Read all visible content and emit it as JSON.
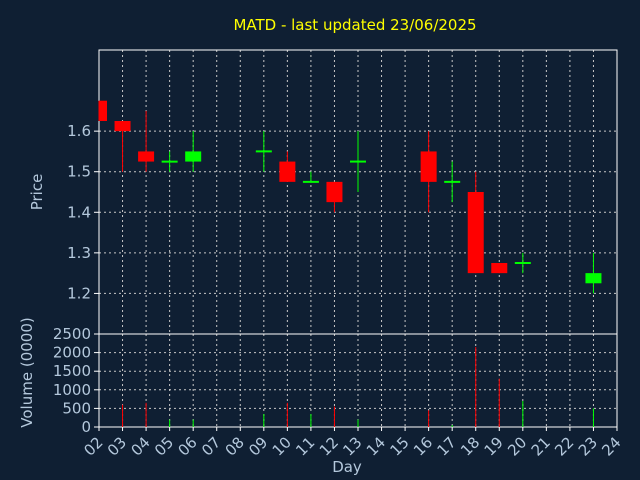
{
  "chart_data": {
    "type": "candlestick",
    "title": "MATD - last updated 23/06/2025",
    "xlabel": "Day",
    "colors": {
      "background": "#0f1f33",
      "title": "#ffff00",
      "axis_text": "#b4c8dc",
      "frame": "#ffffff",
      "grid": "#c8c8c8",
      "up": "#00ff00",
      "down": "#ff0000"
    },
    "x_ticks": [
      "02",
      "03",
      "04",
      "05",
      "06",
      "07",
      "08",
      "09",
      "10",
      "11",
      "12",
      "13",
      "14",
      "15",
      "16",
      "17",
      "18",
      "19",
      "20",
      "21",
      "22",
      "23",
      "24"
    ],
    "price_panel": {
      "ylabel": "Price",
      "ylim": [
        1.1,
        1.8
      ],
      "y_ticks": [
        {
          "value": 1.2,
          "label": "1.2"
        },
        {
          "value": 1.3,
          "label": "1.3"
        },
        {
          "value": 1.4,
          "label": "1.4"
        },
        {
          "value": 1.5,
          "label": "1.5"
        },
        {
          "value": 1.6,
          "label": "1.6"
        }
      ]
    },
    "volume_panel": {
      "ylabel": "Volume (0000)",
      "ylim": [
        0,
        2500
      ],
      "y_ticks": [
        {
          "value": 0,
          "label": "0"
        },
        {
          "value": 500,
          "label": "500"
        },
        {
          "value": 1000,
          "label": "1000"
        },
        {
          "value": 1500,
          "label": "1500"
        },
        {
          "value": 2000,
          "label": "2000"
        },
        {
          "value": 2500,
          "label": "2500"
        }
      ]
    },
    "candles": [
      {
        "day": "02",
        "open": 1.675,
        "high": 1.675,
        "low": 1.625,
        "close": 1.625,
        "volume": 0
      },
      {
        "day": "03",
        "open": 1.625,
        "high": 1.625,
        "low": 1.5,
        "close": 1.6,
        "volume": 600
      },
      {
        "day": "04",
        "open": 1.55,
        "high": 1.65,
        "low": 1.5,
        "close": 1.525,
        "volume": 650
      },
      {
        "day": "05",
        "open": 1.525,
        "high": 1.55,
        "low": 1.5,
        "close": 1.525,
        "volume": 200
      },
      {
        "day": "06",
        "open": 1.525,
        "high": 1.6,
        "low": 1.5,
        "close": 1.55,
        "volume": 200
      },
      {
        "day": "09",
        "open": 1.55,
        "high": 1.6,
        "low": 1.5,
        "close": 1.55,
        "volume": 350
      },
      {
        "day": "10",
        "open": 1.525,
        "high": 1.55,
        "low": 1.475,
        "close": 1.475,
        "volume": 650
      },
      {
        "day": "11",
        "open": 1.475,
        "high": 1.5,
        "low": 1.475,
        "close": 1.475,
        "volume": 350
      },
      {
        "day": "12",
        "open": 1.475,
        "high": 1.475,
        "low": 1.4,
        "close": 1.425,
        "volume": 550
      },
      {
        "day": "13",
        "open": 1.525,
        "high": 1.6,
        "low": 1.45,
        "close": 1.525,
        "volume": 200
      },
      {
        "day": "16",
        "open": 1.55,
        "high": 1.6,
        "low": 1.4,
        "close": 1.475,
        "volume": 450
      },
      {
        "day": "17",
        "open": 1.475,
        "high": 1.525,
        "low": 1.425,
        "close": 1.475,
        "volume": 50
      },
      {
        "day": "18",
        "open": 1.45,
        "high": 1.5,
        "low": 1.25,
        "close": 1.25,
        "volume": 2150
      },
      {
        "day": "19",
        "open": 1.275,
        "high": 1.275,
        "low": 1.25,
        "close": 1.25,
        "volume": 1300
      },
      {
        "day": "20",
        "open": 1.275,
        "high": 1.3,
        "low": 1.25,
        "close": 1.275,
        "volume": 700
      },
      {
        "day": "23",
        "open": 1.225,
        "high": 1.3,
        "low": 1.2,
        "close": 1.25,
        "volume": 500
      }
    ]
  }
}
